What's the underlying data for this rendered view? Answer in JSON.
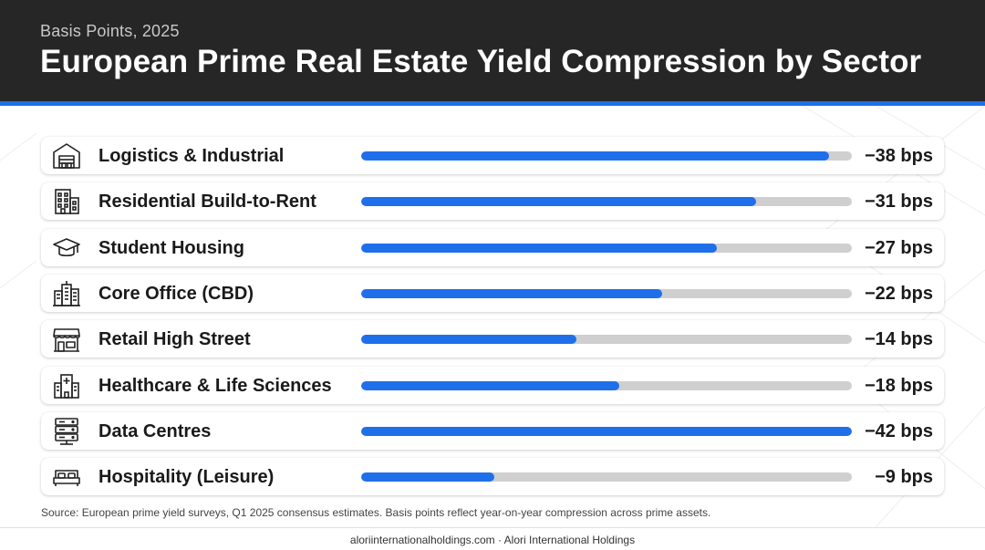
{
  "header": {
    "subtitle": "Basis Points, 2025",
    "title": "European Prime Real Estate Yield Compression by Sector"
  },
  "colors": {
    "header_bg": "#262626",
    "accent": "#1f6feb",
    "track": "#cfcfcf"
  },
  "chart_data": {
    "type": "bar",
    "orientation": "horizontal",
    "title": "European Prime Real Estate Yield Compression by Sector",
    "subtitle": "Basis Points, 2025",
    "unit": "bps",
    "xlim": [
      0,
      42
    ],
    "categories": [
      "Logistics & Industrial",
      "Residential Build-to-Rent",
      "Student Housing",
      "Core Office (CBD)",
      "Retail High Street",
      "Healthcare & Life Sciences",
      "Data Centres",
      "Hospitality (Leisure)"
    ],
    "values": [
      -38,
      -31,
      -27,
      -22,
      -14,
      -18,
      -42,
      -9
    ],
    "value_labels": [
      "−38 bps",
      "−31 bps",
      "−27 bps",
      "−22 bps",
      "−14 bps",
      "−18 bps",
      "−42 bps",
      "−9 bps"
    ],
    "fill_fractions": [
      0.953,
      0.804,
      0.725,
      0.614,
      0.438,
      0.526,
      1.0,
      0.271
    ],
    "icons": [
      "warehouse-icon",
      "apartment-building-icon",
      "graduation-cap-icon",
      "office-towers-icon",
      "storefront-icon",
      "hospital-icon",
      "server-rack-icon",
      "bed-icon"
    ]
  },
  "source": "Source: European prime yield surveys, Q1 2025 consensus estimates. Basis points reflect year-on-year compression across prime assets.",
  "footer": "aloriinternationalholdings.com · Alori International Holdings"
}
